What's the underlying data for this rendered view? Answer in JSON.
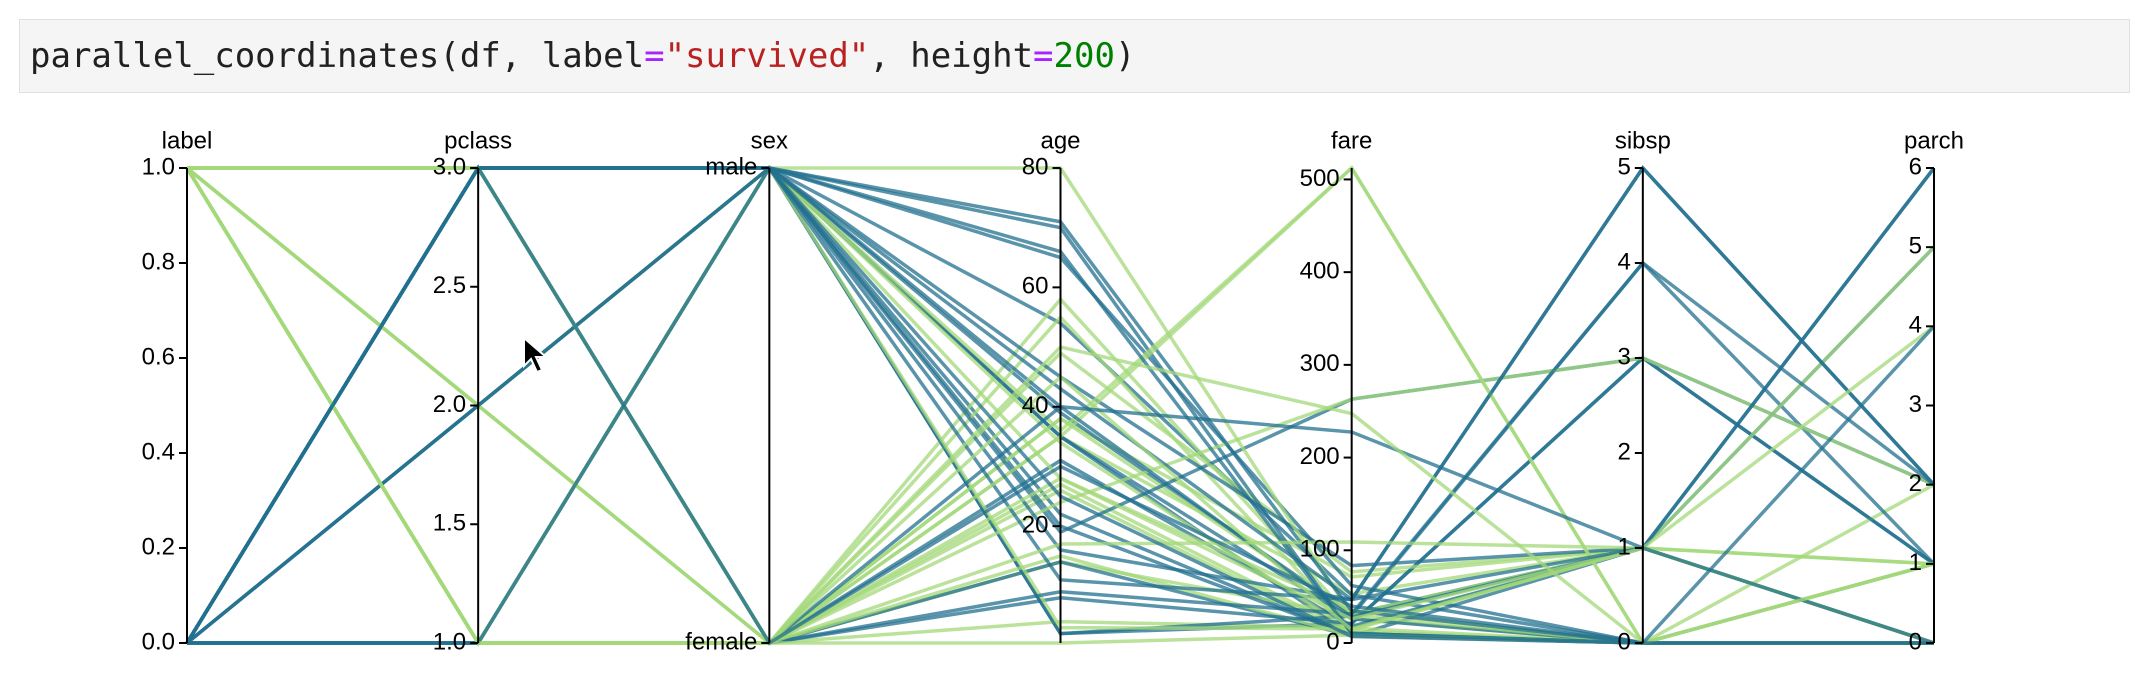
{
  "code": {
    "tokens": [
      "parallel_coordinates(df, label",
      "=",
      "\"survived\"",
      ", height",
      "=",
      "200",
      ")"
    ]
  },
  "chart_data": {
    "type": "parallel_coordinates",
    "dimensions": [
      {
        "name": "label",
        "lim": [
          0,
          1
        ],
        "ticks": [
          {
            "value": 0,
            "label": "0.0"
          },
          {
            "value": 0.2,
            "label": "0.2"
          },
          {
            "value": 0.4,
            "label": "0.4"
          },
          {
            "value": 0.6,
            "label": "0.6"
          },
          {
            "value": 0.8,
            "label": "0.8"
          },
          {
            "value": 1,
            "label": "1.0"
          }
        ]
      },
      {
        "name": "pclass",
        "lim": [
          1,
          3
        ],
        "ticks": [
          {
            "value": 1,
            "label": "1.0"
          },
          {
            "value": 1.5,
            "label": "1.5"
          },
          {
            "value": 2,
            "label": "2.0"
          },
          {
            "value": 2.5,
            "label": "2.5"
          },
          {
            "value": 3,
            "label": "3.0"
          }
        ]
      },
      {
        "name": "sex",
        "categories": [
          "male",
          "female"
        ]
      },
      {
        "name": "age",
        "lim": [
          0.42,
          80
        ],
        "ticks": [
          20,
          40,
          60,
          80
        ]
      },
      {
        "name": "fare",
        "lim": [
          0,
          512.33
        ],
        "ticks": [
          0,
          100,
          200,
          300,
          400,
          500
        ]
      },
      {
        "name": "sibsp",
        "lim": [
          0,
          5
        ],
        "ticks": [
          0,
          1,
          2,
          3,
          4,
          5
        ]
      },
      {
        "name": "parch",
        "lim": [
          0,
          6
        ],
        "ticks": [
          0,
          1,
          2,
          3,
          4,
          5,
          6
        ]
      }
    ],
    "colors": [
      "#23708f",
      "#a3d87a"
    ],
    "rows": [
      [
        0,
        3,
        "male",
        22,
        7.25,
        1,
        0
      ],
      [
        1,
        1,
        "female",
        38,
        71.28,
        1,
        0
      ],
      [
        1,
        3,
        "female",
        26,
        7.93,
        0,
        0
      ],
      [
        1,
        1,
        "female",
        35,
        53.1,
        1,
        0
      ],
      [
        0,
        3,
        "male",
        35,
        8.05,
        0,
        0
      ],
      [
        0,
        1,
        "male",
        54,
        51.86,
        0,
        0
      ],
      [
        0,
        3,
        "male",
        2,
        21.08,
        3,
        1
      ],
      [
        1,
        3,
        "female",
        27,
        11.13,
        0,
        2
      ],
      [
        1,
        2,
        "female",
        14,
        30.07,
        1,
        0
      ],
      [
        1,
        3,
        "female",
        4,
        16.7,
        1,
        1
      ],
      [
        1,
        1,
        "female",
        58,
        26.55,
        0,
        0
      ],
      [
        0,
        3,
        "male",
        20,
        8.05,
        0,
        0
      ],
      [
        0,
        3,
        "male",
        39,
        31.28,
        1,
        5
      ],
      [
        0,
        3,
        "female",
        14,
        7.85,
        0,
        0
      ],
      [
        1,
        2,
        "female",
        55,
        16,
        0,
        0
      ],
      [
        0,
        3,
        "male",
        2,
        29.13,
        4,
        1
      ],
      [
        0,
        3,
        "female",
        31,
        18,
        1,
        0
      ],
      [
        0,
        2,
        "male",
        35,
        26,
        0,
        0
      ],
      [
        1,
        2,
        "male",
        34,
        13,
        0,
        0
      ],
      [
        1,
        3,
        "female",
        15,
        8.03,
        0,
        0
      ],
      [
        1,
        1,
        "male",
        28,
        35.5,
        0,
        0
      ],
      [
        0,
        3,
        "female",
        8,
        21.08,
        3,
        1
      ],
      [
        1,
        3,
        "female",
        38,
        31.39,
        1,
        5
      ],
      [
        0,
        1,
        "male",
        19,
        263,
        3,
        2
      ],
      [
        1,
        1,
        "female",
        49,
        76.73,
        1,
        0
      ],
      [
        0,
        1,
        "male",
        65,
        61.98,
        0,
        1
      ],
      [
        0,
        1,
        "male",
        45,
        83.48,
        1,
        0
      ],
      [
        1,
        3,
        "male",
        3,
        15.25,
        1,
        1
      ],
      [
        0,
        2,
        "male",
        70,
        10.5,
        0,
        0
      ],
      [
        1,
        1,
        "female",
        24,
        263,
        3,
        2
      ],
      [
        0,
        3,
        "male",
        11,
        46.9,
        5,
        2
      ],
      [
        1,
        1,
        "male",
        80,
        30,
        0,
        0
      ],
      [
        0,
        1,
        "male",
        71,
        34.65,
        0,
        0
      ],
      [
        1,
        1,
        "female",
        35,
        512.33,
        0,
        0
      ],
      [
        1,
        1,
        "male",
        36,
        512.33,
        0,
        1
      ],
      [
        0,
        3,
        "female",
        9,
        31.28,
        4,
        2
      ],
      [
        1,
        3,
        "female",
        0.42,
        8.52,
        0,
        1
      ],
      [
        0,
        3,
        "female",
        40,
        27.9,
        1,
        6
      ],
      [
        0,
        3,
        "male",
        16,
        46.9,
        5,
        2
      ],
      [
        1,
        2,
        "female",
        28,
        26,
        1,
        0
      ],
      [
        0,
        2,
        "male",
        66,
        10.5,
        0,
        0
      ],
      [
        1,
        1,
        "female",
        17,
        108.9,
        1,
        0
      ],
      [
        0,
        3,
        "male",
        43,
        46.9,
        1,
        6
      ],
      [
        1,
        3,
        "female",
        45,
        14.11,
        1,
        4
      ],
      [
        0,
        1,
        "male",
        40,
        227.53,
        1,
        0
      ],
      [
        1,
        1,
        "female",
        50,
        247.52,
        0,
        1
      ],
      [
        0,
        3,
        "female",
        30,
        39.69,
        0,
        4
      ],
      [
        0,
        3,
        "male",
        25,
        7.05,
        0,
        0
      ]
    ]
  }
}
